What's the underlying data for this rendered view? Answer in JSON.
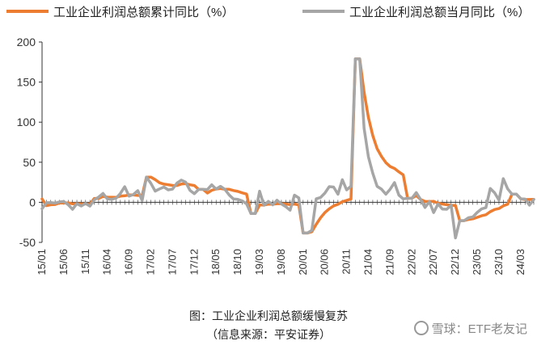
{
  "caption": {
    "title": "图：工业企业利润总额缓慢复苏",
    "source": "（信息来源：平安证券）"
  },
  "watermark": {
    "text": "雪球：ETF老友记",
    "icon": "xueqiu-logo-icon"
  },
  "chart_data": {
    "type": "line",
    "legend_position": "top",
    "grid": false,
    "ylim": [
      -50,
      200
    ],
    "yticks": [
      -50,
      0,
      50,
      100,
      150,
      200
    ],
    "x_tick_labels": [
      "15/01",
      "15/06",
      "15/11",
      "16/04",
      "16/09",
      "17/02",
      "17/07",
      "17/12",
      "18/05",
      "18/10",
      "19/03",
      "19/08",
      "20/01",
      "20/06",
      "20/11",
      "21/04",
      "21/09",
      "22/02",
      "22/07",
      "22/12",
      "23/05",
      "23/10",
      "24/03"
    ],
    "x_start": "2015-01",
    "x_step_months": 1,
    "series": [
      {
        "name": "工业企业利润总额累计同比（%）",
        "color": "#ED7D31",
        "values": [
          4.2,
          -4.2,
          -3,
          -2.7,
          -0.8,
          -0.8,
          -0.7,
          -1.9,
          -1.7,
          -2,
          -1.9,
          -2.3,
          4.8,
          4.8,
          7.4,
          6.5,
          6.4,
          6.2,
          7.7,
          8.2,
          9.2,
          9.2,
          8.6,
          8.5,
          31.5,
          31.5,
          28.3,
          24.4,
          22.7,
          22,
          21.1,
          21,
          22.8,
          23.3,
          21.9,
          21,
          16.1,
          16.1,
          11.6,
          15,
          16.5,
          17.2,
          16.2,
          16.2,
          14.7,
          13.6,
          11.8,
          10.3,
          -14,
          -14,
          -3.3,
          -3.4,
          -2.3,
          -2.4,
          -1.7,
          -1.7,
          -2.1,
          -2.9,
          -2.1,
          -3.3,
          -38.3,
          -38.3,
          -36.7,
          -27.4,
          -19.3,
          -12.8,
          -8.1,
          -4.4,
          -2.4,
          0.7,
          2.4,
          4.1,
          178.9,
          178.9,
          137.3,
          106,
          83.4,
          66.9,
          57.3,
          49.5,
          44.7,
          42.2,
          38,
          34.3,
          5,
          5,
          8.5,
          3.5,
          1,
          1,
          1.1,
          -1.1,
          -2.1,
          -3,
          -3.6,
          -4,
          -22.9,
          -22.9,
          -21.4,
          -20.6,
          -18.8,
          -16.8,
          -15.5,
          -11.7,
          -9,
          -7.8,
          -4.4,
          -2.3,
          10.2,
          10.2,
          4.3,
          3.4,
          3.5,
          3.6
        ],
        "style": "thick"
      },
      {
        "name": "工业企业利润总额当月同比（%）",
        "color": "#A6A6A6",
        "values": [
          -8,
          -0.5,
          -0.4,
          -1,
          0.5,
          1,
          -2.9,
          -8.8,
          -1.7,
          -4.6,
          -1.4,
          -4.7,
          3,
          6.5,
          11.1,
          4.2,
          3.7,
          5.1,
          11,
          19.5,
          7.7,
          9.8,
          14.5,
          2.3,
          31.5,
          23.8,
          14,
          16.7,
          19.1,
          15.5,
          16.5,
          24,
          27.7,
          25.1,
          14.9,
          10.8,
          16.1,
          16.1,
          15.9,
          21.9,
          16.5,
          20,
          16.2,
          9.2,
          4.1,
          3.6,
          1.8,
          -1.9,
          -14,
          -14,
          13.9,
          -3.7,
          1.1,
          -3.1,
          2.6,
          -2,
          -5.3,
          -9.9,
          9,
          5.4,
          -38.3,
          -38.3,
          -34.9,
          4.3,
          6,
          11.5,
          19.6,
          19.1,
          10.1,
          28.2,
          15.5,
          20.1,
          178.9,
          178.9,
          92.3,
          57,
          36.4,
          20,
          16.4,
          10.1,
          16.3,
          24.6,
          9,
          4.2,
          5,
          5,
          12.2,
          3.5,
          -6.5,
          0.8,
          -12.8,
          -2.1,
          -8.4,
          -8.7,
          -3.6,
          -44.5,
          -22.9,
          -22.9,
          -19.3,
          -18.2,
          -12.6,
          -8.3,
          -6.7,
          17.2,
          11.9,
          2.7,
          29.5,
          16.8,
          10.2,
          10.2,
          4.3,
          4,
          -3.5,
          3.6
        ],
        "style": "thick"
      }
    ]
  }
}
